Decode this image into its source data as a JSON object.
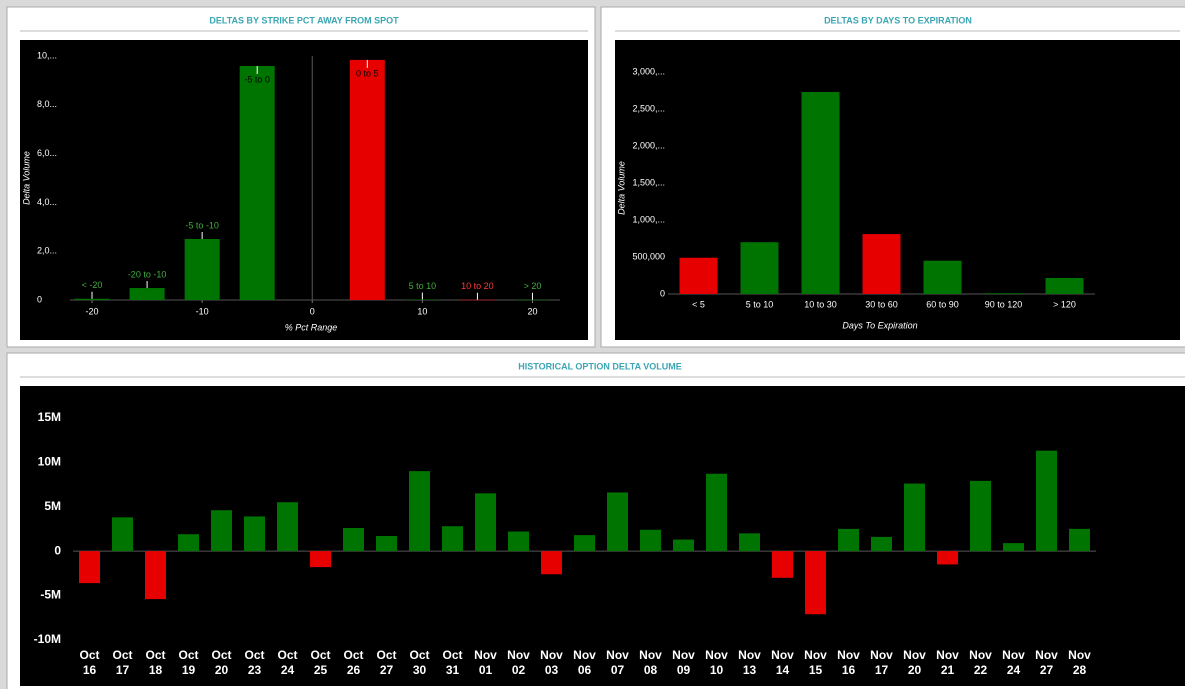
{
  "chart_data": [
    {
      "type": "bar",
      "title": "DELTAS BY STRIKE PCT AWAY FROM SPOT",
      "y_label": "Delta Volume",
      "x_label": "% Pct Range",
      "categories": [
        "< -20",
        "-20 to -10",
        "-5 to -10",
        "-5 to 0",
        "0 to 5",
        "5 to 10",
        "10 to 20",
        "> 20"
      ],
      "x": [
        -20,
        -15,
        -10,
        -5,
        5,
        10,
        15,
        20
      ],
      "values": [
        50,
        490,
        2500,
        9590,
        9840,
        20,
        10,
        10
      ],
      "colors": [
        "#007400",
        "#007400",
        "#007400",
        "#007400",
        "#e60000",
        "#007400",
        "#e60000",
        "#007400"
      ],
      "xlim": [
        -22,
        22.5
      ],
      "xticks": [
        -20,
        -10,
        0,
        10,
        20
      ],
      "ylim": [
        0,
        10000
      ],
      "yticks": [
        0,
        {
          "value": 2000,
          "label": "2,0..."
        },
        {
          "value": 4000,
          "label": "4,0..."
        },
        {
          "value": 6000,
          "label": "6,0..."
        },
        {
          "value": 8000,
          "label": "8,0..."
        },
        {
          "value": 10000,
          "label": "10,..."
        }
      ]
    },
    {
      "type": "bar",
      "title": "DELTAS BY DAYS TO EXPIRATION",
      "y_label": "Delta Volume",
      "x_label": "Days To Expiration",
      "categories": [
        "< 5",
        "5 to 10",
        "10 to 30",
        "30 to 60",
        "60 to 90",
        "90 to 120",
        "> 120"
      ],
      "values": [
        490000,
        700000,
        2730000,
        810000,
        450000,
        10000,
        216000
      ],
      "colors": [
        "#e60000",
        "#007400",
        "#007400",
        "#e60000",
        "#007400",
        "#007400",
        "#007400"
      ],
      "ylim": [
        0,
        3000000
      ],
      "yticks": [
        0,
        {
          "value": 500000,
          "label": "500,000"
        },
        {
          "value": 1000000,
          "label": "1,000,..."
        },
        {
          "value": 1500000,
          "label": "1,500,..."
        },
        {
          "value": 2000000,
          "label": "2,000,..."
        },
        {
          "value": 2500000,
          "label": "2,500,..."
        },
        {
          "value": 3000000,
          "label": "3,000,..."
        }
      ]
    },
    {
      "type": "bar",
      "title": "HISTORICAL OPTION DELTA VOLUME",
      "categories": [
        "Oct 16",
        "Oct 17",
        "Oct 18",
        "Oct 19",
        "Oct 20",
        "Oct 23",
        "Oct 24",
        "Oct 25",
        "Oct 26",
        "Oct 27",
        "Oct 30",
        "Oct 31",
        "Nov 01",
        "Nov 02",
        "Nov 03",
        "Nov 06",
        "Nov 07",
        "Nov 08",
        "Nov 09",
        "Nov 10",
        "Nov 13",
        "Nov 14",
        "Nov 15",
        "Nov 16",
        "Nov 17",
        "Nov 20",
        "Nov 21",
        "Nov 22",
        "Nov 24",
        "Nov 27",
        "Nov 28"
      ],
      "values": [
        -3.6,
        3.8,
        -5.4,
        1.9,
        4.6,
        3.9,
        5.5,
        -1.8,
        2.6,
        1.7,
        9.0,
        2.8,
        6.5,
        2.2,
        -2.6,
        1.8,
        6.6,
        2.4,
        1.3,
        8.7,
        2.0,
        -3.0,
        -7.1,
        2.5,
        1.6,
        7.6,
        -1.5,
        7.9,
        0.9,
        11.3,
        2.5
      ],
      "color": "#007400",
      "negative_color": "#e60000",
      "ylim": [
        -10,
        17
      ],
      "yticks": [
        {
          "value": -10,
          "label": "-10M"
        },
        {
          "value": -5,
          "label": "-5M"
        },
        0,
        {
          "value": 5,
          "label": "5M"
        },
        {
          "value": 10,
          "label": "10M"
        },
        {
          "value": 15,
          "label": "15M"
        }
      ]
    }
  ]
}
